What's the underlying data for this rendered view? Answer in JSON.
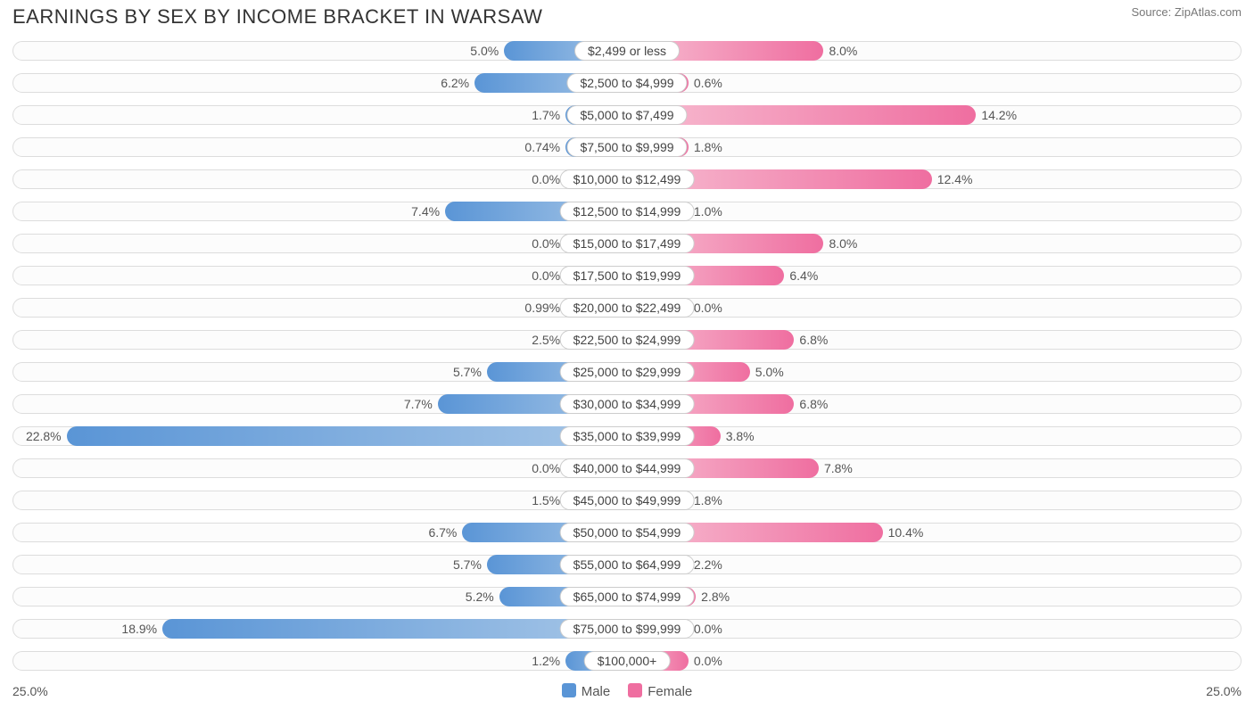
{
  "title": "EARNINGS BY SEX BY INCOME BRACKET IN WARSAW",
  "source": "Source: ZipAtlas.com",
  "axis_max": 25.0,
  "axis_label_left": "25.0%",
  "axis_label_right": "25.0%",
  "min_bar_pct": 2.5,
  "colors": {
    "male_start": "#a6c6e7",
    "male_end": "#5a95d6",
    "female_start": "#f7bed2",
    "female_end": "#ef6ea0",
    "track_bg": "#fcfcfc",
    "track_border": "#dddddd",
    "pill_border": "#cccccc",
    "text": "#555555"
  },
  "legend": [
    {
      "label": "Male",
      "color": "#5a95d6"
    },
    {
      "label": "Female",
      "color": "#ef6ea0"
    }
  ],
  "rows": [
    {
      "category": "$2,499 or less",
      "male": 5.0,
      "male_label": "5.0%",
      "female": 8.0,
      "female_label": "8.0%"
    },
    {
      "category": "$2,500 to $4,999",
      "male": 6.2,
      "male_label": "6.2%",
      "female": 0.6,
      "female_label": "0.6%"
    },
    {
      "category": "$5,000 to $7,499",
      "male": 1.7,
      "male_label": "1.7%",
      "female": 14.2,
      "female_label": "14.2%"
    },
    {
      "category": "$7,500 to $9,999",
      "male": 0.74,
      "male_label": "0.74%",
      "female": 1.8,
      "female_label": "1.8%"
    },
    {
      "category": "$10,000 to $12,499",
      "male": 0.0,
      "male_label": "0.0%",
      "female": 12.4,
      "female_label": "12.4%"
    },
    {
      "category": "$12,500 to $14,999",
      "male": 7.4,
      "male_label": "7.4%",
      "female": 1.0,
      "female_label": "1.0%"
    },
    {
      "category": "$15,000 to $17,499",
      "male": 0.0,
      "male_label": "0.0%",
      "female": 8.0,
      "female_label": "8.0%"
    },
    {
      "category": "$17,500 to $19,999",
      "male": 0.0,
      "male_label": "0.0%",
      "female": 6.4,
      "female_label": "6.4%"
    },
    {
      "category": "$20,000 to $22,499",
      "male": 0.99,
      "male_label": "0.99%",
      "female": 0.0,
      "female_label": "0.0%"
    },
    {
      "category": "$22,500 to $24,999",
      "male": 2.5,
      "male_label": "2.5%",
      "female": 6.8,
      "female_label": "6.8%"
    },
    {
      "category": "$25,000 to $29,999",
      "male": 5.7,
      "male_label": "5.7%",
      "female": 5.0,
      "female_label": "5.0%"
    },
    {
      "category": "$30,000 to $34,999",
      "male": 7.7,
      "male_label": "7.7%",
      "female": 6.8,
      "female_label": "6.8%"
    },
    {
      "category": "$35,000 to $39,999",
      "male": 22.8,
      "male_label": "22.8%",
      "female": 3.8,
      "female_label": "3.8%"
    },
    {
      "category": "$40,000 to $44,999",
      "male": 0.0,
      "male_label": "0.0%",
      "female": 7.8,
      "female_label": "7.8%"
    },
    {
      "category": "$45,000 to $49,999",
      "male": 1.5,
      "male_label": "1.5%",
      "female": 1.8,
      "female_label": "1.8%"
    },
    {
      "category": "$50,000 to $54,999",
      "male": 6.7,
      "male_label": "6.7%",
      "female": 10.4,
      "female_label": "10.4%"
    },
    {
      "category": "$55,000 to $64,999",
      "male": 5.7,
      "male_label": "5.7%",
      "female": 2.2,
      "female_label": "2.2%"
    },
    {
      "category": "$65,000 to $74,999",
      "male": 5.2,
      "male_label": "5.2%",
      "female": 2.8,
      "female_label": "2.8%"
    },
    {
      "category": "$75,000 to $99,999",
      "male": 18.9,
      "male_label": "18.9%",
      "female": 0.0,
      "female_label": "0.0%"
    },
    {
      "category": "$100,000+",
      "male": 1.2,
      "male_label": "1.2%",
      "female": 0.0,
      "female_label": "0.0%"
    }
  ]
}
